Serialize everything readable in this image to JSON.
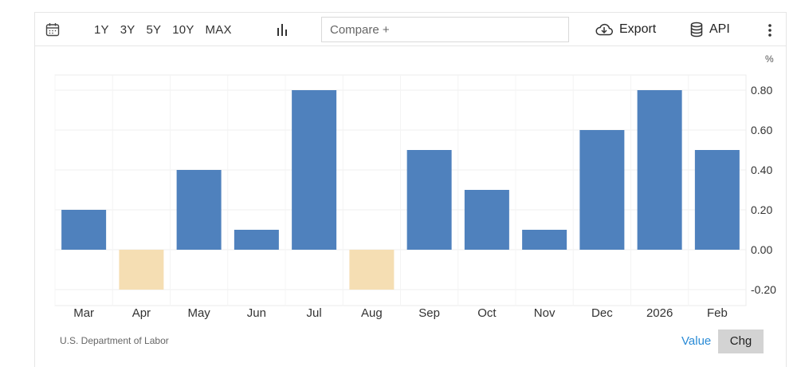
{
  "toolbar": {
    "calendar_icon": "calendar-icon",
    "ranges": [
      "1Y",
      "3Y",
      "5Y",
      "10Y",
      "MAX"
    ],
    "chart_type_icon": "bar-chart-icon",
    "compare_placeholder": "Compare +",
    "export_label": "Export",
    "export_icon": "cloud-download-icon",
    "api_label": "API",
    "api_icon": "database-icon",
    "more_icon": "vertical-dots-icon"
  },
  "footer": {
    "source": "U.S. Department of Labor",
    "value_label": "Value",
    "chg_label": "Chg"
  },
  "chart_data": {
    "type": "bar",
    "unit": "%",
    "categories": [
      "Mar",
      "Apr",
      "May",
      "Jun",
      "Jul",
      "Aug",
      "Sep",
      "Oct",
      "Nov",
      "Dec",
      "2026",
      "Feb"
    ],
    "values": [
      0.2,
      -0.2,
      0.4,
      0.1,
      0.8,
      -0.2,
      0.5,
      0.3,
      0.1,
      0.6,
      0.8,
      0.5
    ],
    "yticks": [
      "0.80",
      "0.60",
      "0.40",
      "0.20",
      "0.00",
      "-0.20"
    ],
    "ylim": [
      -0.28,
      0.87
    ],
    "colors": {
      "positive": "#4f81bd",
      "negative": "#f5deb3"
    },
    "grid": true
  }
}
